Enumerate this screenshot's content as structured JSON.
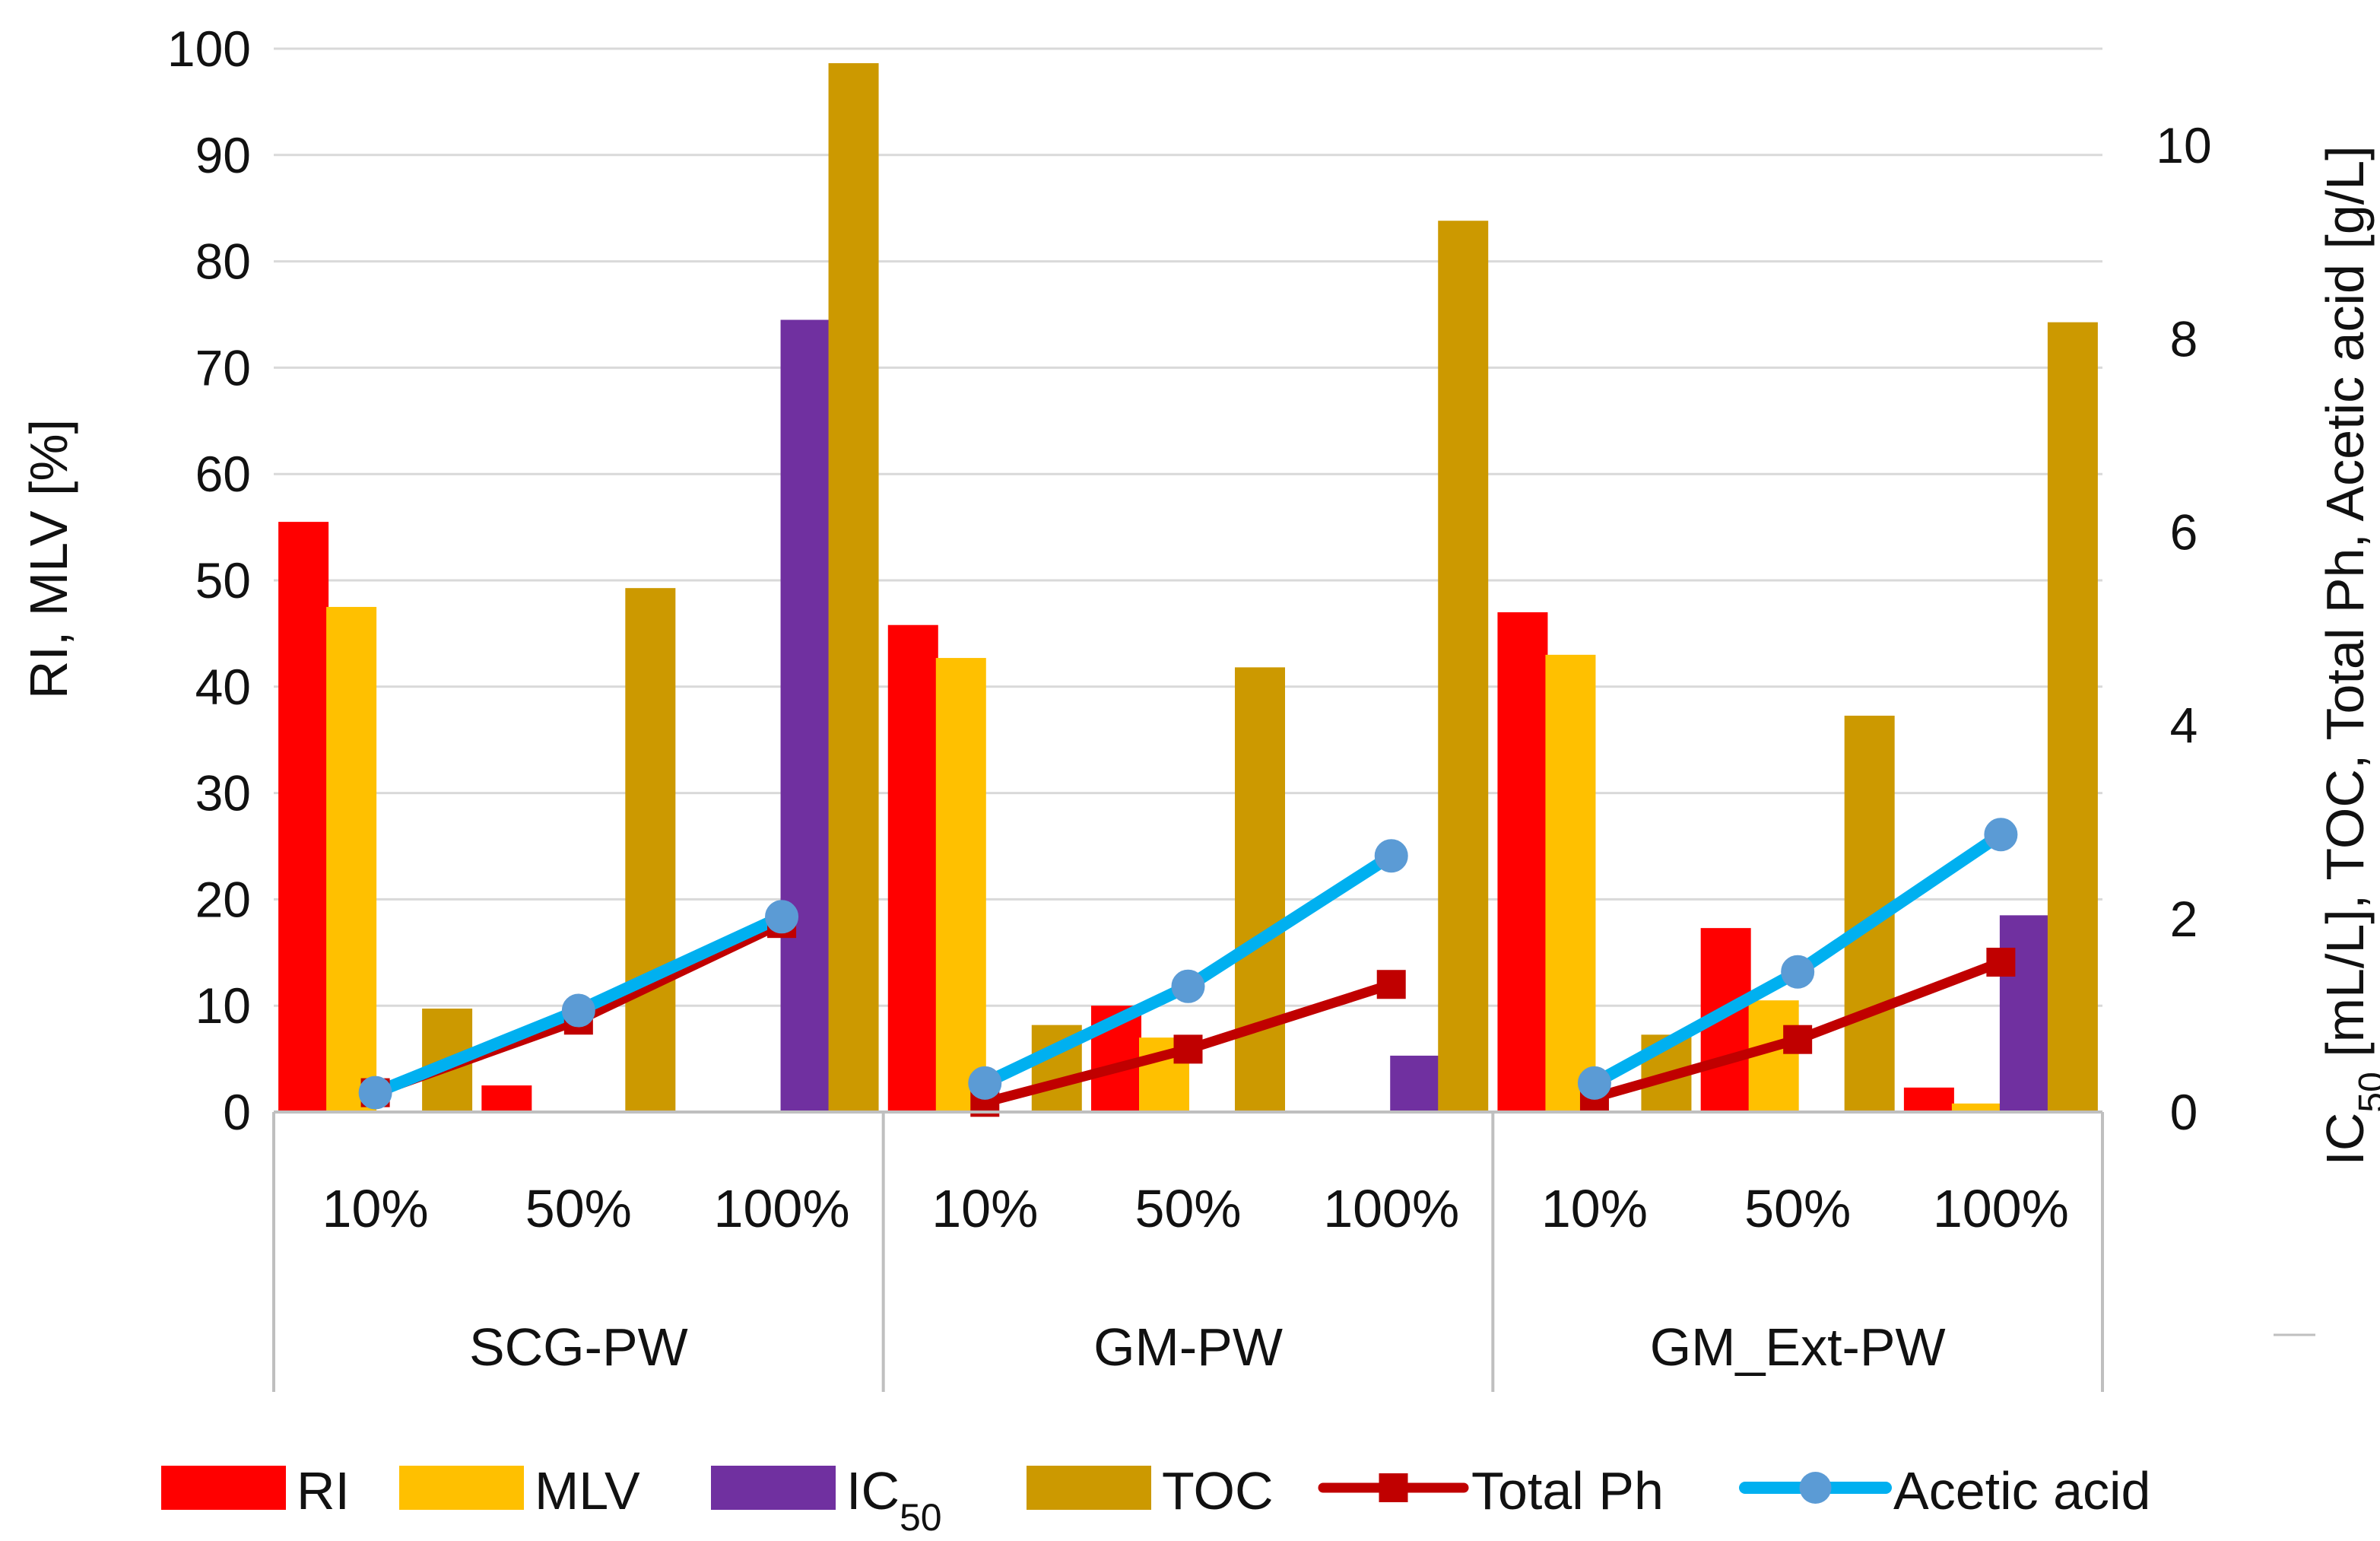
{
  "chart_data": {
    "type": "bar",
    "groups": [
      {
        "name": "SCG-PW",
        "levels": [
          "10%",
          "50%",
          "100%"
        ]
      },
      {
        "name": "GM-PW",
        "levels": [
          "10%",
          "50%",
          "100%"
        ]
      },
      {
        "name": "GM_Ext-PW",
        "levels": [
          "10%",
          "50%",
          "100%"
        ]
      }
    ],
    "left_axis": {
      "label": "RI, MLV [%]",
      "ylim": [
        0,
        100
      ],
      "ticks": [
        "0",
        "10",
        "20",
        "30",
        "40",
        "50",
        "60",
        "70",
        "80",
        "90",
        "100"
      ]
    },
    "right_axis": {
      "label_prefix": "IC",
      "label_sub": "50",
      "label_suffix": " [mL/L], TOC, Total Ph, Acetic acid [g/L]",
      "ylim": [
        0,
        11
      ],
      "ticks": [
        "0",
        "2",
        "4",
        "6",
        "8",
        "10"
      ]
    },
    "grid": true,
    "legend_position": "bottom",
    "bar_series": [
      {
        "key": "RI",
        "name": "RI",
        "name_sub": "",
        "axis": "left",
        "color": "#FF0000",
        "values": [
          55.5,
          2.5,
          0,
          45.8,
          10,
          0,
          47,
          17.3,
          2.3
        ]
      },
      {
        "key": "MLV",
        "name": "MLV",
        "name_sub": "",
        "axis": "left",
        "color": "#FFC000",
        "values": [
          47.5,
          0,
          0,
          42.7,
          7,
          0,
          43,
          10.5,
          0.8
        ]
      },
      {
        "key": "IC50",
        "name": "IC",
        "name_sub": "50",
        "axis": "left",
        "color": "#7030A0",
        "values": [
          0,
          0,
          74.5,
          0,
          0,
          5.3,
          0,
          0,
          18.5
        ]
      },
      {
        "key": "TOC",
        "name": "TOC",
        "name_sub": "",
        "axis": "right",
        "color": "#CC9900",
        "values": [
          1.07,
          5.42,
          10.85,
          0.9,
          4.6,
          9.22,
          0.8,
          4.1,
          8.17
        ]
      }
    ],
    "line_series": [
      {
        "key": "TotalPh",
        "name": "Total Ph",
        "axis": "right",
        "color": "#C00000",
        "marker": "square",
        "values": [
          0.2,
          0.95,
          1.95,
          0.1,
          0.65,
          1.32,
          0.15,
          0.75,
          1.55
        ]
      },
      {
        "key": "Acetic",
        "name": "Acetic acid",
        "axis": "right",
        "color": "#00B0F0",
        "marker": "circle",
        "marker_color": "#5B9BD5",
        "values": [
          0.2,
          1.05,
          2.02,
          0.3,
          1.3,
          2.65,
          0.3,
          1.45,
          2.87
        ]
      }
    ]
  }
}
